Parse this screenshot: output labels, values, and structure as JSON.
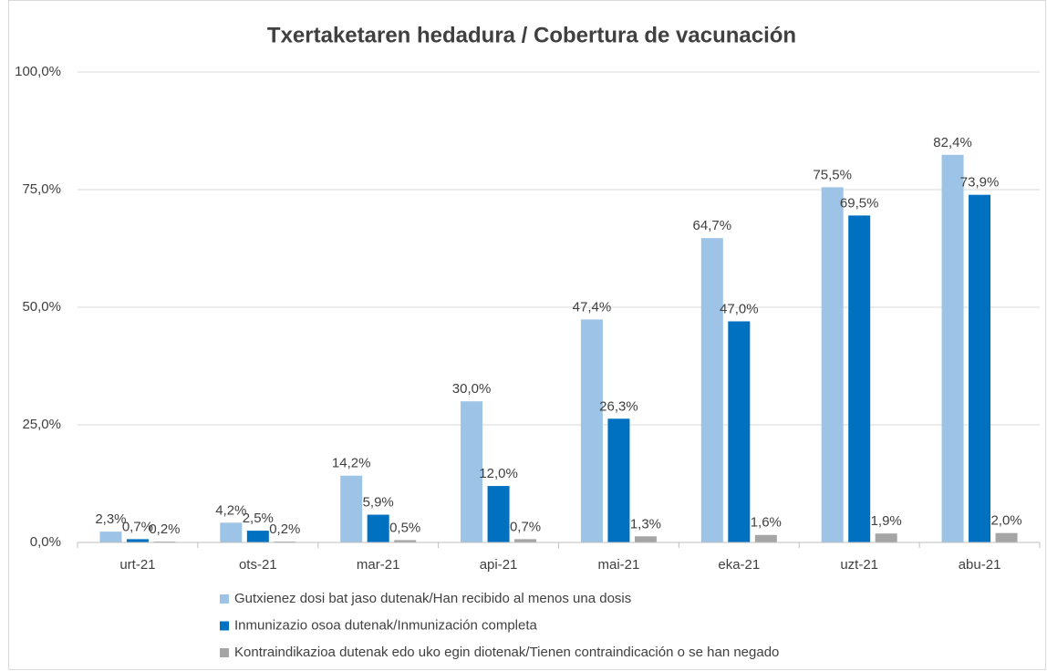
{
  "chart_data": {
    "type": "bar",
    "title": "Txertaketaren hedadura / Cobertura de vacunación",
    "categories": [
      "urt-21",
      "ots-21",
      "mar-21",
      "api-21",
      "mai-21",
      "eka-21",
      "uzt-21",
      "abu-21"
    ],
    "series": [
      {
        "name": "Gutxienez dosi bat jaso dutenak/Han recibido al menos una dosis",
        "color": "#9dc3e6",
        "values": [
          2.3,
          4.2,
          14.2,
          30.0,
          47.4,
          64.7,
          75.5,
          82.4
        ],
        "value_labels": [
          "2,3%",
          "4,2%",
          "14,2%",
          "30,0%",
          "47,4%",
          "64,7%",
          "75,5%",
          "82,4%"
        ]
      },
      {
        "name": "Inmunizazio osoa dutenak/Inmunización completa",
        "color": "#0070c0",
        "values": [
          0.7,
          2.5,
          5.9,
          12.0,
          26.3,
          47.0,
          69.5,
          73.9
        ],
        "value_labels": [
          "0,7%",
          "2,5%",
          "5,9%",
          "12,0%",
          "26,3%",
          "47,0%",
          "69,5%",
          "73,9%"
        ]
      },
      {
        "name": "Kontraindikazioa dutenak edo uko egin diotenak/Tienen contraindicación o se han negado",
        "color": "#a5a5a5",
        "values": [
          0.2,
          0.2,
          0.5,
          0.7,
          1.3,
          1.6,
          1.9,
          2.0
        ],
        "value_labels": [
          "0,2%",
          "0,2%",
          "0,5%",
          "0,7%",
          "1,3%",
          "1,6%",
          "1,9%",
          "2,0%"
        ]
      }
    ],
    "ylim": [
      0,
      100
    ],
    "yticks": [
      {
        "value": 0,
        "label": "0,0%"
      },
      {
        "value": 25,
        "label": "25,0%"
      },
      {
        "value": 50,
        "label": "50,0%"
      },
      {
        "value": 75,
        "label": "75,0%"
      },
      {
        "value": 100,
        "label": "100,0%"
      }
    ],
    "grid": true,
    "legend": "bottom"
  }
}
